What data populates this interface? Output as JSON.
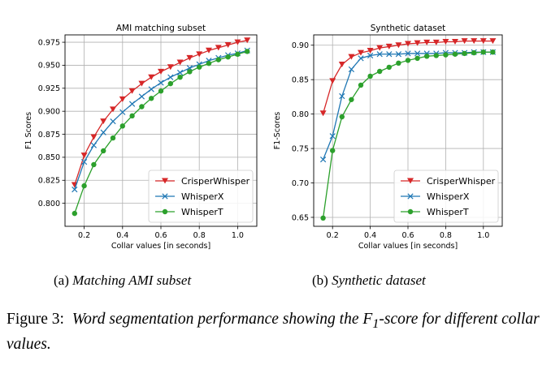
{
  "chart_data": [
    {
      "type": "line",
      "title": "AMI matching subset",
      "xlabel": "Collar values [in seconds]",
      "ylabel": "F1 Scores",
      "xlim": [
        0.1,
        1.1
      ],
      "ylim": [
        0.775,
        0.983
      ],
      "xticks": [
        "0.2",
        "0.4",
        "0.6",
        "0.8",
        "1.0"
      ],
      "xtick_values": [
        0.2,
        0.4,
        0.6,
        0.8,
        1.0
      ],
      "yticks": [
        "0.800",
        "0.825",
        "0.850",
        "0.875",
        "0.900",
        "0.925",
        "0.950",
        "0.975"
      ],
      "ytick_values": [
        0.8,
        0.825,
        0.85,
        0.875,
        0.9,
        0.925,
        0.95,
        0.975
      ],
      "grid": true,
      "legend_position": "lower-right",
      "x": [
        0.15,
        0.2,
        0.25,
        0.3,
        0.35,
        0.4,
        0.45,
        0.5,
        0.55,
        0.6,
        0.65,
        0.7,
        0.75,
        0.8,
        0.85,
        0.9,
        0.95,
        1.0,
        1.05
      ],
      "series": [
        {
          "name": "CrisperWhisper",
          "color": "#d62728",
          "marker": "triangle-down",
          "values": [
            0.82,
            0.852,
            0.872,
            0.889,
            0.902,
            0.913,
            0.922,
            0.93,
            0.937,
            0.943,
            0.948,
            0.953,
            0.958,
            0.962,
            0.966,
            0.969,
            0.972,
            0.975,
            0.977
          ]
        },
        {
          "name": "WhisperX",
          "color": "#1f77b4",
          "marker": "x",
          "values": [
            0.815,
            0.845,
            0.863,
            0.877,
            0.889,
            0.899,
            0.908,
            0.916,
            0.924,
            0.931,
            0.937,
            0.942,
            0.947,
            0.951,
            0.955,
            0.958,
            0.961,
            0.963,
            0.966
          ]
        },
        {
          "name": "WhisperT",
          "color": "#2ca02c",
          "marker": "circle",
          "values": [
            0.789,
            0.819,
            0.842,
            0.857,
            0.871,
            0.884,
            0.895,
            0.905,
            0.914,
            0.922,
            0.93,
            0.937,
            0.943,
            0.948,
            0.952,
            0.956,
            0.959,
            0.962,
            0.965
          ]
        }
      ]
    },
    {
      "type": "line",
      "title": "Synthetic dataset",
      "xlabel": "Collar values [in seconds]",
      "ylabel": "F1-Scores",
      "xlim": [
        0.1,
        1.1
      ],
      "ylim": [
        0.637,
        0.915
      ],
      "xticks": [
        "0.2",
        "0.4",
        "0.6",
        "0.8",
        "1.0"
      ],
      "xtick_values": [
        0.2,
        0.4,
        0.6,
        0.8,
        1.0
      ],
      "yticks": [
        "0.65",
        "0.70",
        "0.75",
        "0.80",
        "0.85",
        "0.90"
      ],
      "ytick_values": [
        0.65,
        0.7,
        0.75,
        0.8,
        0.85,
        0.9
      ],
      "grid": true,
      "legend_position": "lower-right",
      "x": [
        0.15,
        0.2,
        0.25,
        0.3,
        0.35,
        0.4,
        0.45,
        0.5,
        0.55,
        0.6,
        0.65,
        0.7,
        0.75,
        0.8,
        0.85,
        0.9,
        0.95,
        1.0,
        1.05
      ],
      "series": [
        {
          "name": "CrisperWhisper",
          "color": "#d62728",
          "marker": "triangle-down",
          "values": [
            0.801,
            0.848,
            0.872,
            0.883,
            0.889,
            0.892,
            0.896,
            0.898,
            0.9,
            0.902,
            0.903,
            0.904,
            0.904,
            0.905,
            0.905,
            0.906,
            0.906,
            0.906,
            0.906
          ]
        },
        {
          "name": "WhisperX",
          "color": "#1f77b4",
          "marker": "x",
          "values": [
            0.734,
            0.768,
            0.826,
            0.865,
            0.881,
            0.885,
            0.887,
            0.887,
            0.887,
            0.888,
            0.888,
            0.888,
            0.888,
            0.889,
            0.889,
            0.889,
            0.89,
            0.89,
            0.89
          ]
        },
        {
          "name": "WhisperT",
          "color": "#2ca02c",
          "marker": "circle",
          "values": [
            0.649,
            0.747,
            0.796,
            0.821,
            0.842,
            0.855,
            0.862,
            0.868,
            0.874,
            0.878,
            0.881,
            0.884,
            0.885,
            0.886,
            0.887,
            0.888,
            0.889,
            0.89,
            0.89
          ]
        }
      ]
    }
  ],
  "subcaptions": [
    {
      "label": "(a)",
      "text": "Matching AMI subset"
    },
    {
      "label": "(b)",
      "text": "Synthetic dataset"
    }
  ],
  "caption": {
    "label": "Figure 3:",
    "text_before": "Word segmentation performance showing the F",
    "sub": "1",
    "text_after": "-score for different collar values."
  }
}
